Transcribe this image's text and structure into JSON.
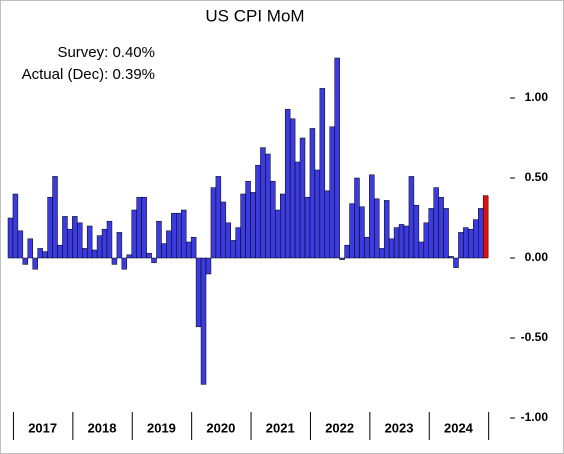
{
  "chart_data": {
    "type": "bar",
    "title": "US CPI MoM",
    "annotations": [
      "Survey:  0.40%",
      "Actual (Dec):  0.39%"
    ],
    "years": [
      "2017",
      "2018",
      "2019",
      "2020",
      "2021",
      "2022",
      "2023",
      "2024"
    ],
    "values": [
      0.25,
      0.4,
      0.17,
      -0.04,
      0.12,
      -0.07,
      0.06,
      0.04,
      0.38,
      0.51,
      0.08,
      0.26,
      0.18,
      0.26,
      0.22,
      0.06,
      0.2,
      0.05,
      0.14,
      0.18,
      0.23,
      -0.04,
      0.16,
      -0.07,
      0.02,
      0.3,
      0.38,
      0.38,
      0.03,
      -0.03,
      0.23,
      0.09,
      0.17,
      0.28,
      0.28,
      0.3,
      0.1,
      0.13,
      -0.43,
      -0.79,
      -0.1,
      0.44,
      0.51,
      0.35,
      0.22,
      0.11,
      0.19,
      0.4,
      0.48,
      0.41,
      0.58,
      0.69,
      0.65,
      0.48,
      0.3,
      0.4,
      0.93,
      0.87,
      0.6,
      0.75,
      0.38,
      0.81,
      0.55,
      1.06,
      0.42,
      0.82,
      1.25,
      -0.01,
      0.08,
      0.34,
      0.5,
      0.32,
      0.13,
      0.52,
      0.37,
      0.06,
      0.36,
      0.12,
      0.19,
      0.21,
      0.2,
      0.51,
      0.33,
      0.1,
      0.22,
      0.31,
      0.44,
      0.38,
      0.31,
      0.01,
      -0.06,
      0.16,
      0.19,
      0.18,
      0.24,
      0.31,
      0.39
    ],
    "color": "#3b3be0",
    "highlight_color": "#e01010",
    "ylim": [
      -1.0,
      1.6
    ],
    "yticks": [
      {
        "value": -1.0,
        "label": "-1.00"
      },
      {
        "value": -0.5,
        "label": "-0.50"
      },
      {
        "value": 0.0,
        "label": "0.00"
      },
      {
        "value": 0.5,
        "label": "0.50"
      },
      {
        "value": 1.0,
        "label": "1.00"
      }
    ],
    "grid": false
  }
}
